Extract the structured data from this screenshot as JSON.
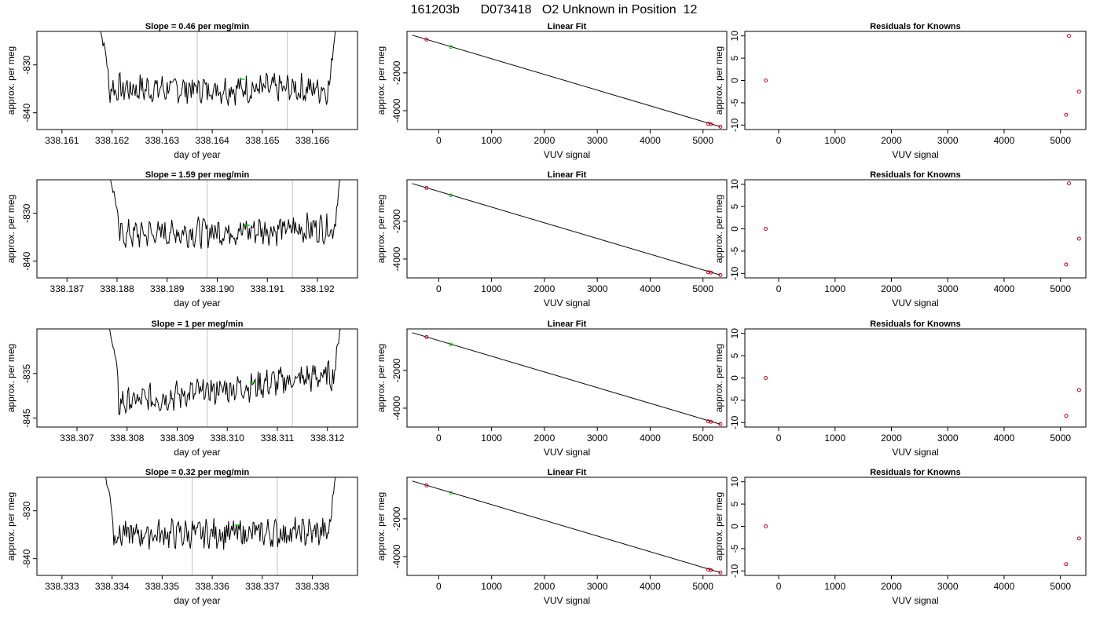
{
  "title": "161203b      D073418   O2 Unknown in Position  12",
  "colors": {
    "trace": "#000000",
    "vline": "#c0c0c0",
    "known": "#d0021b",
    "unknown": "#00cc00",
    "fitline": "#000000"
  },
  "chart_data": [
    {
      "type": "line",
      "title": "Slope =  0.46  per meg/min",
      "xlabel": "day of year",
      "ylabel": "approx. per meg",
      "xlim": [
        338.1605,
        338.1669
      ],
      "ylim": [
        -843.5,
        -823
      ],
      "xticks": [
        "338.161",
        "338.162",
        "338.163",
        "338.164",
        "338.165",
        "338.166"
      ],
      "xtick_values": [
        338.161,
        338.162,
        338.163,
        338.164,
        338.165,
        338.166
      ],
      "yticks": [
        "-830",
        "-840"
      ],
      "ytick_values": [
        -830,
        -840
      ],
      "trace_start": 338.1617,
      "trace_end": 338.1665,
      "edge_top": -820,
      "baseline": -835,
      "trend": 0,
      "noise": 1.6,
      "vlines": [
        338.1637,
        338.1655
      ],
      "unknown_point": [
        338.1646,
        -833
      ]
    },
    {
      "type": "line",
      "title": "Slope =  1.59  per meg/min",
      "xlabel": "day of year",
      "ylabel": "approx. per meg",
      "xlim": [
        338.1864,
        338.1928
      ],
      "ylim": [
        -843.5,
        -823
      ],
      "xticks": [
        "338.187",
        "338.188",
        "338.189",
        "338.190",
        "338.191",
        "338.192"
      ],
      "xtick_values": [
        338.187,
        338.188,
        338.189,
        338.19,
        338.191,
        338.192
      ],
      "yticks": [
        "-830",
        "-840"
      ],
      "ytick_values": [
        -830,
        -840
      ],
      "trace_start": 338.1878,
      "trace_end": 338.1925,
      "edge_top": -820,
      "baseline": -834.5,
      "trend": 1.5,
      "noise": 1.6,
      "vlines": [
        338.1898,
        338.1915
      ],
      "unknown_point": [
        338.1906,
        -832.5
      ]
    },
    {
      "type": "line",
      "title": "Slope =  1  per meg/min",
      "xlabel": "day of year",
      "ylabel": "approx. per meg",
      "xlim": [
        338.3062,
        338.3126
      ],
      "ylim": [
        -847,
        -825
      ],
      "xticks": [
        "338.307",
        "338.308",
        "338.309",
        "338.310",
        "338.311",
        "338.312"
      ],
      "xtick_values": [
        338.307,
        338.308,
        338.309,
        338.31,
        338.311,
        338.312
      ],
      "yticks": [
        "-835",
        "-845"
      ],
      "ytick_values": [
        -835,
        -845
      ],
      "trace_start": 338.3076,
      "trace_end": 338.3123,
      "edge_top": -822,
      "baseline": -842,
      "trend": 7,
      "noise": 1.7,
      "vlines": [
        338.3096,
        338.3113
      ],
      "unknown_point": [
        338.3105,
        -837
      ]
    },
    {
      "type": "line",
      "title": "Slope =  0.32  per meg/min",
      "xlabel": "day of year",
      "ylabel": "approx. per meg",
      "xlim": [
        338.3325,
        338.3389
      ],
      "ylim": [
        -843.5,
        -823
      ],
      "xticks": [
        "338.333",
        "338.334",
        "338.335",
        "338.336",
        "338.337",
        "338.338"
      ],
      "xtick_values": [
        338.333,
        338.334,
        338.335,
        338.336,
        338.337,
        338.338
      ],
      "yticks": [
        "-830",
        "-840"
      ],
      "ytick_values": [
        -830,
        -840
      ],
      "trace_start": 338.3338,
      "trace_end": 338.3385,
      "edge_top": -820,
      "baseline": -835,
      "trend": 0.5,
      "noise": 1.6,
      "vlines": [
        338.3356,
        338.3373
      ],
      "unknown_point": [
        338.3365,
        -833
      ]
    },
    {
      "type": "scatter",
      "title": "Linear Fit",
      "xlabel": "VUV signal",
      "ylabel": "approx. per meg",
      "xlim": [
        -600,
        5450
      ],
      "ylim": [
        -5000,
        200
      ],
      "xticks": [
        "0",
        "1000",
        "2000",
        "3000",
        "4000",
        "5000"
      ],
      "xtick_values": [
        0,
        1000,
        2000,
        3000,
        4000,
        5000
      ],
      "yticks": [
        "-2000",
        "-4000"
      ],
      "ytick_values": [
        -2000,
        -4000
      ],
      "fit_line": [
        [
          -500,
          0
        ],
        [
          5330,
          -4850
        ]
      ],
      "knowns": [
        [
          -230,
          -230
        ],
        [
          5100,
          -4700
        ],
        [
          5150,
          -4720
        ],
        [
          5330,
          -4850
        ]
      ],
      "unknown": [
        [
          230,
          -620
        ]
      ]
    },
    {
      "type": "scatter",
      "title": "Linear Fit",
      "xlabel": "VUV signal",
      "ylabel": "approx. per meg",
      "xlim": [
        -600,
        5450
      ],
      "ylim": [
        -5000,
        200
      ],
      "xticks": [
        "0",
        "1000",
        "2000",
        "3000",
        "4000",
        "5000"
      ],
      "xtick_values": [
        0,
        1000,
        2000,
        3000,
        4000,
        5000
      ],
      "yticks": [
        "-2000",
        "-4000"
      ],
      "ytick_values": [
        -2000,
        -4000
      ],
      "fit_line": [
        [
          -500,
          0
        ],
        [
          5330,
          -4850
        ]
      ],
      "knowns": [
        [
          -230,
          -230
        ],
        [
          5100,
          -4700
        ],
        [
          5150,
          -4720
        ],
        [
          5330,
          -4850
        ]
      ],
      "unknown": [
        [
          230,
          -620
        ]
      ]
    },
    {
      "type": "scatter",
      "title": "Linear Fit",
      "xlabel": "VUV signal",
      "ylabel": "approx. per meg",
      "xlim": [
        -600,
        5450
      ],
      "ylim": [
        -5000,
        200
      ],
      "xticks": [
        "0",
        "1000",
        "2000",
        "3000",
        "4000",
        "5000"
      ],
      "xtick_values": [
        0,
        1000,
        2000,
        3000,
        4000,
        5000
      ],
      "yticks": [
        "-2000",
        "-4000"
      ],
      "ytick_values": [
        -2000,
        -4000
      ],
      "fit_line": [
        [
          -500,
          0
        ],
        [
          5330,
          -4850
        ]
      ],
      "knowns": [
        [
          -230,
          -230
        ],
        [
          5100,
          -4700
        ],
        [
          5150,
          -4720
        ],
        [
          5330,
          -4850
        ]
      ],
      "unknown": [
        [
          230,
          -620
        ]
      ]
    },
    {
      "type": "scatter",
      "title": "Linear Fit",
      "xlabel": "VUV signal",
      "ylabel": "approx. per meg",
      "xlim": [
        -600,
        5450
      ],
      "ylim": [
        -5000,
        200
      ],
      "xticks": [
        "0",
        "1000",
        "2000",
        "3000",
        "4000",
        "5000"
      ],
      "xtick_values": [
        0,
        1000,
        2000,
        3000,
        4000,
        5000
      ],
      "yticks": [
        "-2000",
        "-4000"
      ],
      "ytick_values": [
        -2000,
        -4000
      ],
      "fit_line": [
        [
          -500,
          0
        ],
        [
          5330,
          -4850
        ]
      ],
      "knowns": [
        [
          -230,
          -230
        ],
        [
          5100,
          -4700
        ],
        [
          5150,
          -4720
        ],
        [
          5330,
          -4850
        ]
      ],
      "unknown": [
        [
          230,
          -620
        ]
      ]
    },
    {
      "type": "scatter",
      "title": "Residuals for Knowns",
      "xlabel": "VUV signal",
      "ylabel": "approx. per meg",
      "xlim": [
        -600,
        5450
      ],
      "ylim": [
        -11,
        11
      ],
      "xticks": [
        "0",
        "1000",
        "2000",
        "3000",
        "4000",
        "5000"
      ],
      "xtick_values": [
        0,
        1000,
        2000,
        3000,
        4000,
        5000
      ],
      "yticks": [
        "-10",
        "-5",
        "0",
        "5",
        "10"
      ],
      "ytick_values": [
        -10,
        -5,
        0,
        5,
        10
      ],
      "points": [
        [
          -230,
          0
        ],
        [
          5150,
          10
        ],
        [
          5330,
          -2.5
        ],
        [
          5100,
          -7.7
        ]
      ]
    },
    {
      "type": "scatter",
      "title": "Residuals for Knowns",
      "xlabel": "VUV signal",
      "ylabel": "approx. per meg",
      "xlim": [
        -600,
        5450
      ],
      "ylim": [
        -11,
        11
      ],
      "xticks": [
        "0",
        "1000",
        "2000",
        "3000",
        "4000",
        "5000"
      ],
      "xtick_values": [
        0,
        1000,
        2000,
        3000,
        4000,
        5000
      ],
      "yticks": [
        "-10",
        "-5",
        "0",
        "5",
        "10"
      ],
      "ytick_values": [
        -10,
        -5,
        0,
        5,
        10
      ],
      "points": [
        [
          -230,
          0
        ],
        [
          5150,
          10.2
        ],
        [
          5330,
          -2.2
        ],
        [
          5100,
          -8
        ]
      ]
    },
    {
      "type": "scatter",
      "title": "Residuals for Knowns",
      "xlabel": "VUV signal",
      "ylabel": "approx. per meg",
      "xlim": [
        -600,
        5450
      ],
      "ylim": [
        -11,
        11
      ],
      "xticks": [
        "0",
        "1000",
        "2000",
        "3000",
        "4000",
        "5000"
      ],
      "xtick_values": [
        0,
        1000,
        2000,
        3000,
        4000,
        5000
      ],
      "yticks": [
        "-10",
        "-5",
        "0",
        "5",
        "10"
      ],
      "ytick_values": [
        -10,
        -5,
        0,
        5,
        10
      ],
      "points": [
        [
          -230,
          0
        ],
        [
          5330,
          -2.7
        ],
        [
          5100,
          -8.5
        ]
      ]
    },
    {
      "type": "scatter",
      "title": "Residuals for Knowns",
      "xlabel": "VUV signal",
      "ylabel": "approx. per meg",
      "xlim": [
        -600,
        5450
      ],
      "ylim": [
        -11,
        11
      ],
      "xticks": [
        "0",
        "1000",
        "2000",
        "3000",
        "4000",
        "5000"
      ],
      "xtick_values": [
        0,
        1000,
        2000,
        3000,
        4000,
        5000
      ],
      "yticks": [
        "-10",
        "-5",
        "0",
        "5",
        "10"
      ],
      "ytick_values": [
        -10,
        -5,
        0,
        5,
        10
      ],
      "points": [
        [
          -230,
          0
        ],
        [
          5330,
          -2.7
        ],
        [
          5100,
          -8.5
        ]
      ]
    }
  ]
}
